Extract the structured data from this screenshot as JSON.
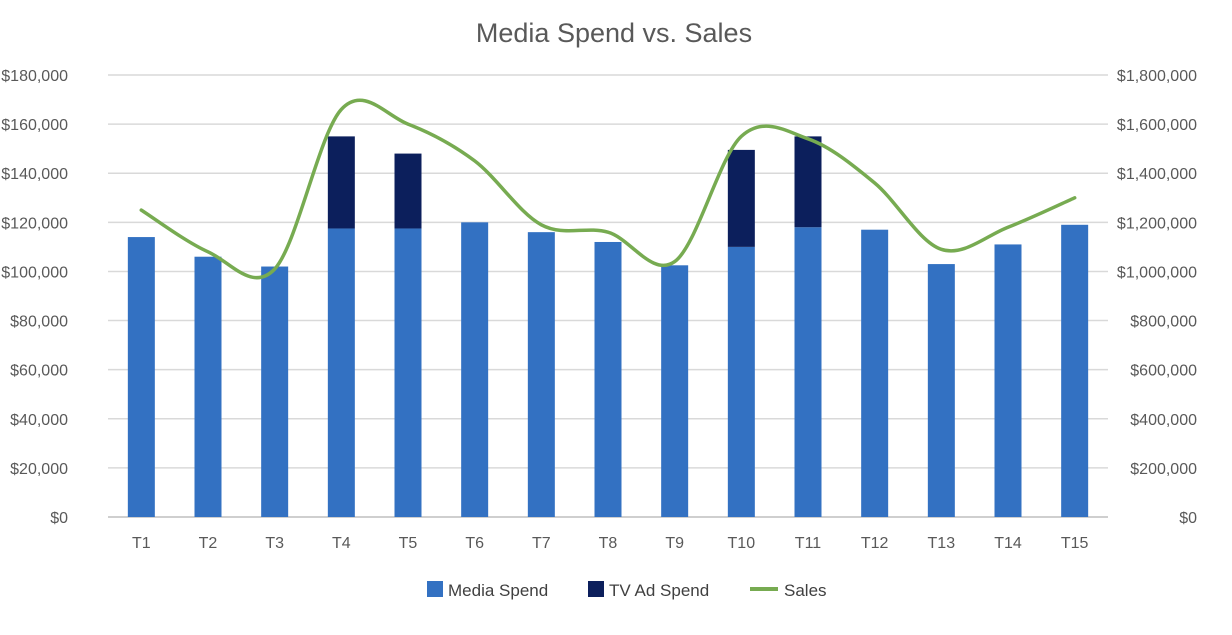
{
  "chart_data": {
    "type": "bar",
    "title": "Media Spend vs. Sales",
    "categories": [
      "T1",
      "T2",
      "T3",
      "T4",
      "T5",
      "T6",
      "T7",
      "T8",
      "T9",
      "T10",
      "T11",
      "T12",
      "T13",
      "T14",
      "T15"
    ],
    "series": [
      {
        "name": "Media Spend",
        "type": "bar",
        "stack": "spend",
        "axis": "left",
        "color": "#3371c2",
        "values": [
          114000,
          106000,
          102000,
          117500,
          117500,
          120000,
          116000,
          112000,
          102500,
          110000,
          118000,
          117000,
          103000,
          111000,
          119000
        ]
      },
      {
        "name": "TV Ad Spend",
        "type": "bar",
        "stack": "spend",
        "axis": "left",
        "color": "#0c1f5c",
        "values": [
          0,
          0,
          0,
          37500,
          30500,
          0,
          0,
          0,
          0,
          39500,
          37000,
          0,
          0,
          0,
          0
        ]
      },
      {
        "name": "Sales",
        "type": "line",
        "smooth": true,
        "axis": "right",
        "color": "#77ab51",
        "values": [
          1250000,
          1080000,
          1010000,
          1660000,
          1600000,
          1450000,
          1190000,
          1160000,
          1040000,
          1550000,
          1540000,
          1360000,
          1090000,
          1180000,
          1300000
        ]
      }
    ],
    "y_left": {
      "min": 0,
      "max": 180000,
      "step": 20000,
      "tick_labels": [
        "$0",
        "$20,000",
        "$40,000",
        "$60,000",
        "$80,000",
        "$100,000",
        "$120,000",
        "$140,000",
        "$160,000",
        "$180,000"
      ]
    },
    "y_right": {
      "min": 0,
      "max": 1800000,
      "step": 200000,
      "tick_labels": [
        "$0",
        "$200,000",
        "$400,000",
        "$600,000",
        "$800,000",
        "$1,000,000",
        "$1,200,000",
        "$1,400,000",
        "$1,600,000",
        "$1,800,000"
      ]
    },
    "grid": true,
    "legend_position": "bottom"
  }
}
